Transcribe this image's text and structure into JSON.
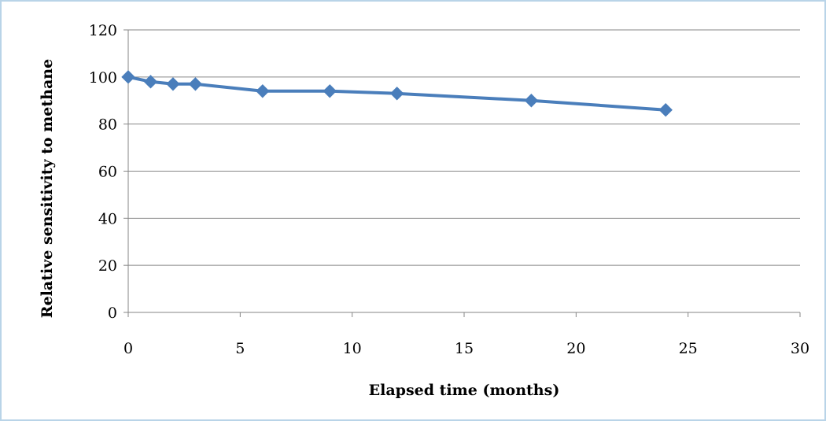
{
  "chart_data": {
    "type": "line",
    "xlabel": "Elapsed time (months)",
    "ylabel": "Relative sensitivity to methane",
    "xlim": [
      0,
      30
    ],
    "ylim": [
      0,
      120
    ],
    "xticks": [
      0,
      5,
      10,
      15,
      20,
      25,
      30
    ],
    "yticks": [
      0,
      20,
      40,
      60,
      80,
      100,
      120
    ],
    "grid": "horizontal",
    "legend": "none",
    "series": [
      {
        "x": [
          0,
          1,
          2,
          3,
          6,
          9,
          12,
          18,
          24
        ],
        "values": [
          100,
          98,
          97,
          97,
          94,
          94,
          93,
          90,
          86
        ],
        "color": "#4a7ebb",
        "marker": "diamond"
      }
    ],
    "frame_border_color": "#b9d4e8",
    "grid_color": "#868686"
  }
}
